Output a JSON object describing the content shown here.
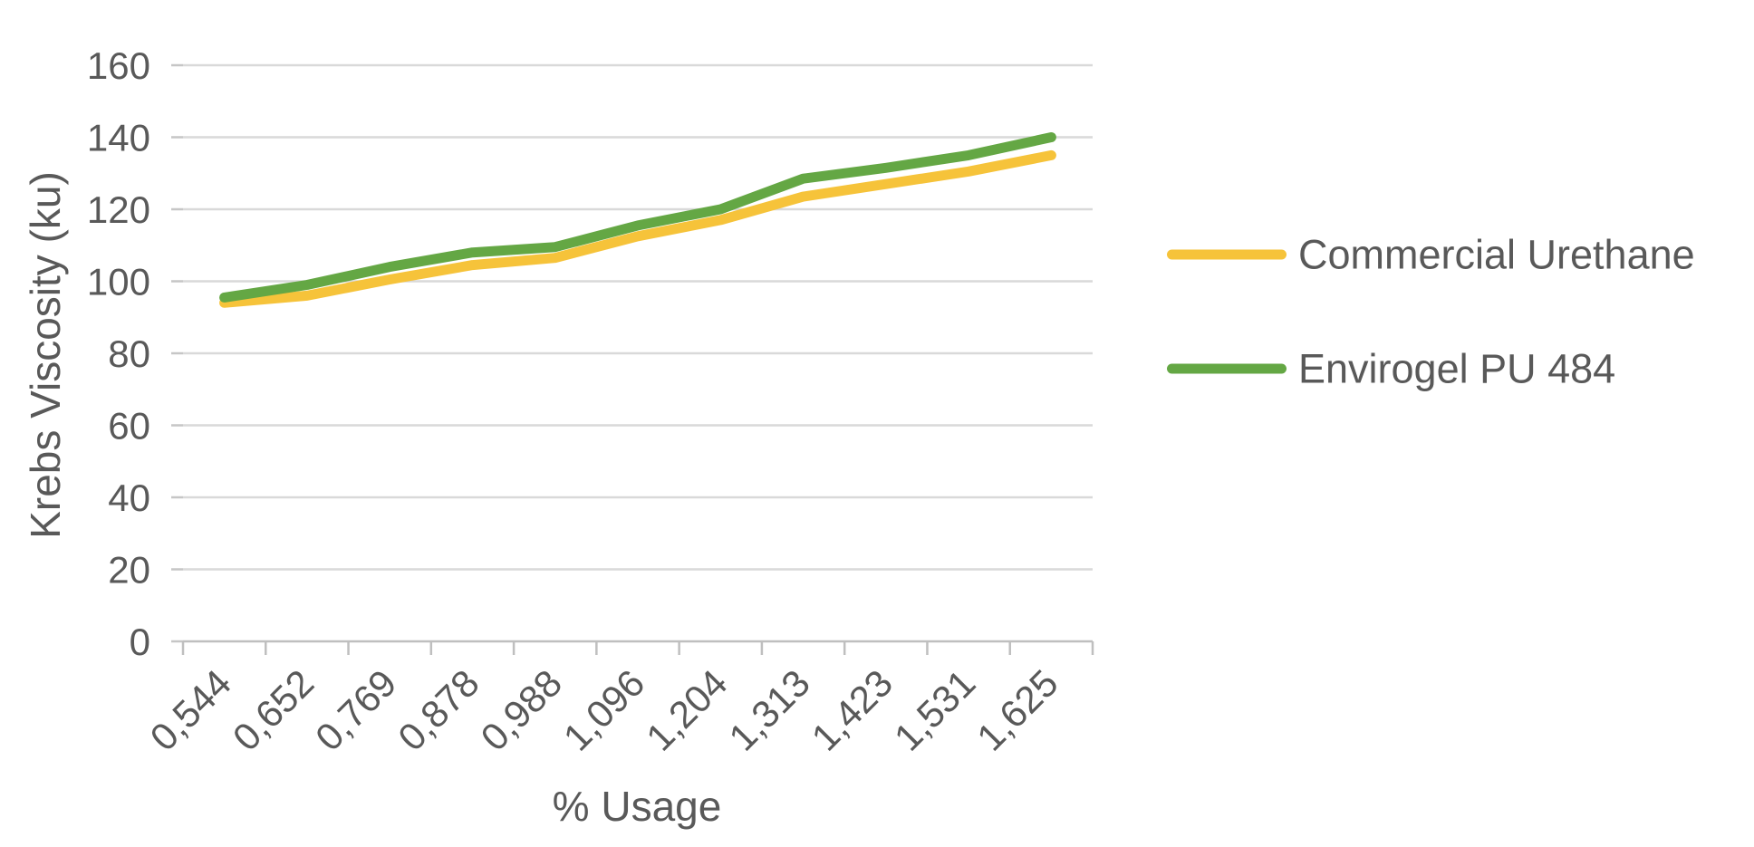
{
  "chart_data": {
    "type": "line",
    "title": "",
    "xlabel": "% Usage",
    "ylabel": "Krebs Viscosity (ku)",
    "categories": [
      "0,544",
      "0,652",
      "0,769",
      "0,878",
      "0,988",
      "1,096",
      "1,204",
      "1,313",
      "1,423",
      "1,531",
      "1,625"
    ],
    "series": [
      {
        "name": "Commercial Urethane",
        "color": "#F6C33A",
        "values": [
          94,
          96,
          100.5,
          104.5,
          106.5,
          112.5,
          117,
          123.5,
          127,
          130.5,
          135
        ]
      },
      {
        "name": "Envirogel PU 484",
        "color": "#64A744",
        "values": [
          95.5,
          99,
          104,
          108,
          109.5,
          115.5,
          120,
          128.5,
          131.5,
          135,
          140
        ]
      }
    ],
    "y_ticks": [
      0,
      20,
      40,
      60,
      80,
      100,
      120,
      140,
      160
    ],
    "ylim": [
      0,
      160
    ],
    "grid": true,
    "legend_position": "right",
    "colors": {
      "text": "#595959",
      "gridline": "#D9D9D9",
      "axis": "#BFBFBF",
      "tick_stub": "#C6C6C6"
    }
  }
}
